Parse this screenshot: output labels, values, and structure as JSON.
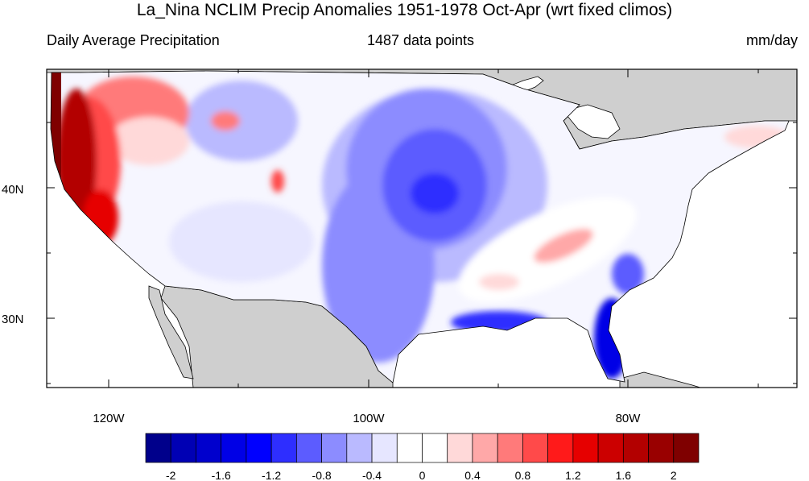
{
  "title": "La_Nina NCLIM Precip Anomalies 1951-1978 Oct-Apr (wrt fixed climos)",
  "subtitle_left": "Daily Average Precipitation",
  "subtitle_center": "1487 data points",
  "subtitle_right": "mm/day",
  "lat_labels": [
    "40N",
    "30N"
  ],
  "lon_labels": [
    "120W",
    "100W",
    "80W"
  ],
  "colorbar": {
    "colors": [
      "#00008b",
      "#0000b4",
      "#0000cd",
      "#0000e6",
      "#0000ff",
      "#2e2eff",
      "#5c5cff",
      "#8c8cff",
      "#babaff",
      "#e6e6ff",
      "#ffffff",
      "#ffffff",
      "#ffd9d9",
      "#ffa8a8",
      "#ff7a7a",
      "#ff4a4a",
      "#ff1a1a",
      "#e60000",
      "#cc0000",
      "#b30000",
      "#990000",
      "#7f0000"
    ],
    "tick_labels": [
      "-2",
      "-1.6",
      "-1.2",
      "-0.8",
      "-0.4",
      "0",
      "0.4",
      "0.8",
      "1.2",
      "1.6",
      "2"
    ]
  }
}
